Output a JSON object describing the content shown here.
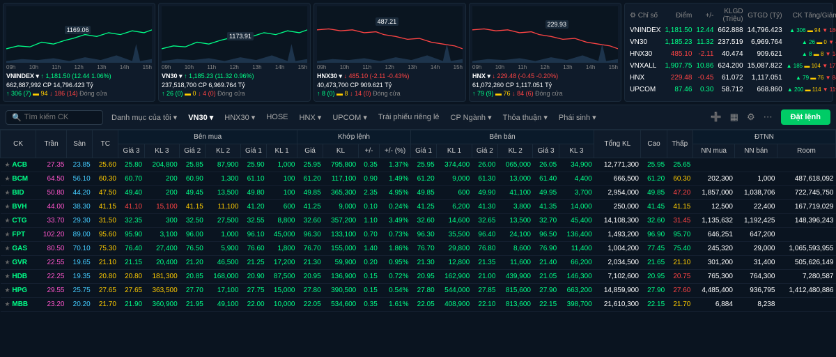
{
  "charts": [
    {
      "name": "VNINDEX",
      "price": "1,181.50",
      "change": "(12.44 1.06%)",
      "priceColor": "#00ff88",
      "volume": "662,887,992 CP",
      "value": "14,796.423 Tỷ",
      "up": "306",
      "upPct": "(7)",
      "flat": "94",
      "down": "186",
      "downPct": "(14)",
      "status": "Đóng cửa",
      "label": "1169.06",
      "labelLeft": "40%",
      "labelTop": "35%",
      "lineColor": "#00ff88"
    },
    {
      "name": "VN30",
      "price": "1,185.23",
      "change": "(11.32 0.96%)",
      "priceColor": "#00ff88",
      "volume": "237,518,700 CP",
      "value": "6,969.764 Tỷ",
      "up": "26",
      "upPct": "(0)",
      "flat": "0",
      "down": "4",
      "downPct": "(0)",
      "status": "Đóng cửa",
      "label": "1173.91",
      "labelLeft": "45%",
      "labelTop": "45%",
      "lineColor": "#00ff88"
    },
    {
      "name": "HNX30",
      "price": "485.10",
      "change": "(-2.11 -0.43%)",
      "priceColor": "#ff4444",
      "volume": "40,473,700 CP",
      "value": "909.621 Tỷ",
      "up": "8",
      "upPct": "(0)",
      "flat": "8",
      "down": "14",
      "downPct": "(0)",
      "status": "Đóng cửa",
      "label": "487.21",
      "labelLeft": "40%",
      "labelTop": "20%",
      "lineColor": "#ff4444"
    },
    {
      "name": "HNX",
      "price": "229.48",
      "change": "(-0.45 -0.20%)",
      "priceColor": "#ff4444",
      "volume": "61,072,260 CP",
      "value": "1,117.051 Tỷ",
      "up": "79",
      "upPct": "(9)",
      "flat": "76",
      "down": "84",
      "downPct": "(6)",
      "status": "Đóng cửa",
      "label": "229.93",
      "labelLeft": "50%",
      "labelTop": "25%",
      "lineColor": "#ff4444"
    }
  ],
  "chartXAxis": [
    "09h",
    "10h",
    "11h",
    "12h",
    "13h",
    "14h",
    "15h"
  ],
  "indexTable": {
    "headers": [
      "Chỉ số",
      "Điểm",
      "+/-",
      "KLGD (Triệu)",
      "GTGD (Tỷ)",
      "CK Tăng/Giảm"
    ],
    "gearIcon": "⚙",
    "rows": [
      {
        "name": "VNINDEX",
        "pts": "1,181.50",
        "ptsColor": "#00ff88",
        "chg": "12.44",
        "chgColor": "#00ff88",
        "vol": "662.888",
        "val": "14,796.423",
        "up": "306",
        "flat": "94",
        "down": "186"
      },
      {
        "name": "VN30",
        "pts": "1,185.23",
        "ptsColor": "#00ff88",
        "chg": "11.32",
        "chgColor": "#00ff88",
        "vol": "237.519",
        "val": "6,969.764",
        "up": "26",
        "flat": "0",
        "down": "4"
      },
      {
        "name": "HNX30",
        "pts": "485.10",
        "ptsColor": "#ff4444",
        "chg": "-2.11",
        "chgColor": "#ff4444",
        "vol": "40.474",
        "val": "909.621",
        "up": "8",
        "flat": "8",
        "down": "14"
      },
      {
        "name": "VNXALL",
        "pts": "1,907.75",
        "ptsColor": "#00ff88",
        "chg": "10.86",
        "chgColor": "#00ff88",
        "vol": "624.200",
        "val": "15,087.822",
        "up": "185",
        "flat": "104",
        "down": "177"
      },
      {
        "name": "HNX",
        "pts": "229.48",
        "ptsColor": "#ff4444",
        "chg": "-0.45",
        "chgColor": "#ff4444",
        "vol": "61.072",
        "val": "1,117.051",
        "up": "79",
        "flat": "76",
        "down": "84"
      },
      {
        "name": "UPCOM",
        "pts": "87.46",
        "ptsColor": "#00ff88",
        "chg": "0.30",
        "chgColor": "#00ff88",
        "vol": "58.712",
        "val": "668.860",
        "up": "200",
        "flat": "114",
        "down": "119"
      }
    ]
  },
  "filterBar": {
    "searchPlaceholder": "Tìm kiếm CK",
    "tabs": [
      "Danh mục của tôi",
      "VN30",
      "HNX30",
      "HOSE",
      "HNX",
      "UPCOM",
      "Trái phiếu riêng lẻ",
      "CP Ngành",
      "Thỏa thuận",
      "Phái sinh"
    ],
    "activeTab": "VN30",
    "orderBtn": "Đặt lệnh"
  },
  "mainTable": {
    "headers": {
      "ck": "CK",
      "tran": "Trần",
      "san": "Sàn",
      "tc": "TC",
      "benMua": "Bên mua",
      "gia3": "Giá 3",
      "kl3": "KL 3",
      "gia2": "Giá 2",
      "kl2": "KL 2",
      "gia1": "Giá 1",
      "kl1": "KL 1",
      "khopLenh": "Khớp lệnh",
      "gia": "Giá",
      "kl": "KL",
      "pm": "+/-",
      "pmPct": "+/- (%)",
      "benBan": "Bên bán",
      "bgia1": "Giá 1",
      "bkl1": "KL 1",
      "bgia2": "Giá 2",
      "bkl2": "KL 2",
      "bgia3": "Giá 3",
      "bkl3": "KL 3",
      "tongKL": "Tổng KL",
      "cao": "Cao",
      "thap": "Thấp",
      "dtnn": "ĐTNN",
      "nnMua": "NN mua",
      "nnBan": "NN bán",
      "room": "Room"
    },
    "rows": [
      {
        "ck": "ACB",
        "tran": "27.35",
        "san": "23.85",
        "tc": "25.60",
        "g3": "25.80",
        "k3": "204,800",
        "g2": "25.85",
        "k2": "87,900",
        "g1": "25.90",
        "k1": "1,000",
        "gia": "25.95",
        "kl": "795,800",
        "pm": "0.35",
        "pmp": "1.37%",
        "bg1": "25.95",
        "bk1": "374,400",
        "bg2": "26.00",
        "bk2": "065,000",
        "bg3": "26.05",
        "bk3": "34,900",
        "tkl": "12,771,300",
        "cao": "25.95",
        "thap": "25.65",
        "nm": "",
        "nb": "",
        "room": "",
        "c": "#00ff88"
      },
      {
        "ck": "BCM",
        "tran": "64.50",
        "san": "56.10",
        "tc": "60.30",
        "g3": "60.70",
        "k3": "200",
        "g2": "60.90",
        "k2": "1,300",
        "g1": "61.10",
        "k1": "100",
        "gia": "61.20",
        "kl": "117,100",
        "pm": "0.90",
        "pmp": "1.49%",
        "bg1": "61.20",
        "bk1": "9,000",
        "bg2": "61.30",
        "bk2": "13,000",
        "bg3": "61.40",
        "bk3": "4,400",
        "tkl": "666,500",
        "cao": "61.20",
        "thap": "60.30",
        "nm": "202,300",
        "nb": "1,000",
        "room": "487,618,092",
        "c": "#00ff88",
        "thapC": "#ffcc00"
      },
      {
        "ck": "BID",
        "tran": "50.80",
        "san": "44.20",
        "tc": "47.50",
        "g3": "49.40",
        "k3": "200",
        "g2": "49.45",
        "k2": "13,500",
        "g1": "49.80",
        "k1": "100",
        "gia": "49.85",
        "kl": "365,300",
        "pm": "2.35",
        "pmp": "4.95%",
        "bg1": "49.85",
        "bk1": "600",
        "bg2": "49.90",
        "bk2": "41,100",
        "bg3": "49.95",
        "bk3": "3,700",
        "tkl": "2,954,000",
        "cao": "49.85",
        "thap": "47.20",
        "nm": "1,857,000",
        "nb": "1,038,706",
        "room": "722,745,750",
        "c": "#00ff88",
        "thapC": "#ff4444"
      },
      {
        "ck": "BVH",
        "tran": "44.00",
        "san": "38.30",
        "tc": "41.15",
        "g3": "41.10",
        "k3": "15,100",
        "g2": "41.15",
        "k2": "11,100",
        "g1": "41.20",
        "k1": "600",
        "gia": "41.25",
        "kl": "9,000",
        "pm": "0.10",
        "pmp": "0.24%",
        "bg1": "41.25",
        "bk1": "6,200",
        "bg2": "41.30",
        "bk2": "3,800",
        "bg3": "41.35",
        "bk3": "14,000",
        "tkl": "250,000",
        "cao": "41.45",
        "thap": "41.15",
        "nm": "12,500",
        "nb": "22,400",
        "room": "167,719,029",
        "c": "#00ff88",
        "g3C": "#ff4444",
        "g2C": "#ffcc00",
        "thapC": "#ffcc00"
      },
      {
        "ck": "CTG",
        "tran": "33.70",
        "san": "29.30",
        "tc": "31.50",
        "g3": "32.35",
        "k3": "300",
        "g2": "32.50",
        "k2": "27,500",
        "g1": "32.55",
        "k1": "8,800",
        "gia": "32.60",
        "kl": "357,200",
        "pm": "1.10",
        "pmp": "3.49%",
        "bg1": "32.60",
        "bk1": "14,600",
        "bg2": "32.65",
        "bk2": "13,500",
        "bg3": "32.70",
        "bk3": "45,400",
        "tkl": "14,108,300",
        "cao": "32.60",
        "thap": "31.45",
        "nm": "1,135,632",
        "nb": "1,192,425",
        "room": "148,396,243",
        "c": "#00ff88",
        "thapC": "#ff4444"
      },
      {
        "ck": "FPT",
        "tran": "102.20",
        "san": "89.00",
        "tc": "95.60",
        "g3": "95.90",
        "k3": "3,100",
        "g2": "96.00",
        "k2": "1,000",
        "g1": "96.10",
        "k1": "45,000",
        "gia": "96.30",
        "kl": "133,100",
        "pm": "0.70",
        "pmp": "0.73%",
        "bg1": "96.30",
        "bk1": "35,500",
        "bg2": "96.40",
        "bk2": "24,100",
        "bg3": "96.50",
        "bk3": "136,400",
        "tkl": "1,493,200",
        "cao": "96.90",
        "thap": "95.70",
        "nm": "646,251",
        "nb": "647,200",
        "room": "",
        "c": "#00ff88"
      },
      {
        "ck": "GAS",
        "tran": "80.50",
        "san": "70.10",
        "tc": "75.30",
        "g3": "76.40",
        "k3": "27,400",
        "g2": "76.50",
        "k2": "5,900",
        "g1": "76.60",
        "k1": "1,800",
        "gia": "76.70",
        "kl": "155,000",
        "pm": "1.40",
        "pmp": "1.86%",
        "bg1": "76.70",
        "bk1": "29,800",
        "bg2": "76.80",
        "bk2": "8,600",
        "bg3": "76.90",
        "bk3": "11,400",
        "tkl": "1,004,200",
        "cao": "77.45",
        "thap": "75.40",
        "nm": "245,320",
        "nb": "29,000",
        "room": "1,065,593,955",
        "c": "#00ff88"
      },
      {
        "ck": "GVR",
        "tran": "22.55",
        "san": "19.65",
        "tc": "21.10",
        "g3": "21.15",
        "k3": "20,400",
        "g2": "21.20",
        "k2": "46,500",
        "g1": "21.25",
        "k1": "17,200",
        "gia": "21.30",
        "kl": "59,900",
        "pm": "0.20",
        "pmp": "0.95%",
        "bg1": "21.30",
        "bk1": "12,800",
        "bg2": "21.35",
        "bk2": "11,600",
        "bg3": "21.40",
        "bk3": "66,200",
        "tkl": "2,034,500",
        "cao": "21.65",
        "thap": "21.10",
        "nm": "301,200",
        "nb": "31,400",
        "room": "505,626,149",
        "c": "#00ff88",
        "thapC": "#ffcc00"
      },
      {
        "ck": "HDB",
        "tran": "22.25",
        "san": "19.35",
        "tc": "20.80",
        "g3": "20.80",
        "k3": "181,300",
        "g2": "20.85",
        "k2": "168,000",
        "g1": "20.90",
        "k1": "87,500",
        "gia": "20.95",
        "kl": "136,900",
        "pm": "0.15",
        "pmp": "0.72%",
        "bg1": "20.95",
        "bk1": "162,900",
        "bg2": "21.00",
        "bk2": "439,900",
        "bg3": "21.05",
        "bk3": "146,300",
        "tkl": "7,102,600",
        "cao": "20.95",
        "thap": "20.75",
        "nm": "765,300",
        "nb": "764,300",
        "room": "7,280,587",
        "c": "#00ff88",
        "g3C": "#ffcc00",
        "thapC": "#ff4444"
      },
      {
        "ck": "HPG",
        "tran": "29.55",
        "san": "25.75",
        "tc": "27.65",
        "g3": "27.65",
        "k3": "363,500",
        "g2": "27.70",
        "k2": "17,100",
        "g1": "27.75",
        "k1": "15,000",
        "gia": "27.80",
        "kl": "390,500",
        "pm": "0.15",
        "pmp": "0.54%",
        "bg1": "27.80",
        "bk1": "544,000",
        "bg2": "27.85",
        "bk2": "815,600",
        "bg3": "27.90",
        "bk3": "663,200",
        "tkl": "14,859,900",
        "cao": "27.90",
        "thap": "27.60",
        "nm": "4,485,400",
        "nb": "936,795",
        "room": "1,412,480,886",
        "c": "#00ff88",
        "g3C": "#ffcc00",
        "thapC": "#ff4444"
      },
      {
        "ck": "MBB",
        "tran": "23.20",
        "san": "20.20",
        "tc": "21.70",
        "g3": "21.90",
        "k3": "360,900",
        "g2": "21.95",
        "k2": "49,100",
        "g1": "22.00",
        "k1": "10,000",
        "gia": "22.05",
        "kl": "534,600",
        "pm": "0.35",
        "pmp": "1.61%",
        "bg1": "22.05",
        "bk1": "408,900",
        "bg2": "22.10",
        "bk2": "813,600",
        "bg3": "22.15",
        "bk3": "398,700",
        "tkl": "21,610,300",
        "cao": "22.15",
        "thap": "21.70",
        "nm": "6,884",
        "nb": "8,238",
        "room": "",
        "c": "#00ff88",
        "thapC": "#ffcc00"
      }
    ]
  }
}
